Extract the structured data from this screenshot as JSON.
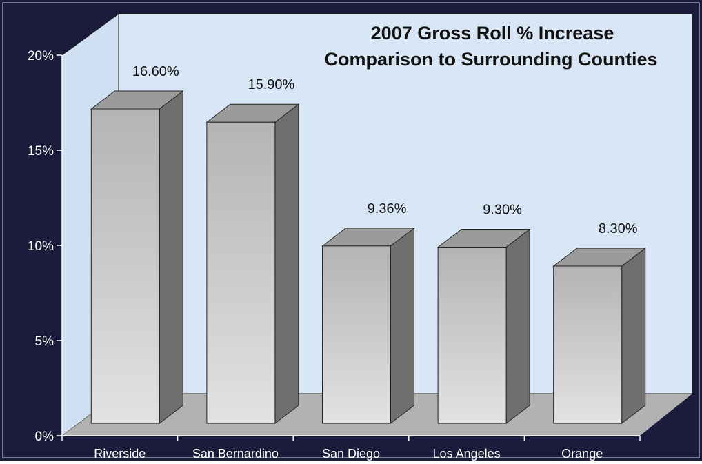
{
  "chart_data": {
    "type": "bar",
    "title_lines": [
      "2007 Gross Roll % Increase",
      "Comparison to Surrounding Counties"
    ],
    "categories": [
      "Riverside",
      "San Bernardino",
      "San Diego",
      "Los Angeles",
      "Orange"
    ],
    "values": [
      16.6,
      15.9,
      9.36,
      9.3,
      8.3
    ],
    "value_labels": [
      "16.60%",
      "15.90%",
      "9.36%",
      "9.30%",
      "8.30%"
    ],
    "y_ticks": [
      0,
      5,
      10,
      15,
      20
    ],
    "y_tick_labels": [
      "0%",
      "5%",
      "10%",
      "15%",
      "20%"
    ],
    "ylim": [
      0,
      20
    ],
    "xlabel": "",
    "ylabel": "",
    "grid": false,
    "legend": "none",
    "style": "3d"
  },
  "colors": {
    "frame_background": "#1b1c3c",
    "back_wall": "#d8e6f5",
    "side_wall": "#cfe0f2",
    "floor": "#b2b2b2",
    "bar_front_top": "#b4b4b4",
    "bar_front_bottom": "#e2e2e2",
    "bar_side": "#6f6f6f",
    "bar_top": "#9b9b9b",
    "text_dark": "#111111",
    "text_light": "#ffffff"
  }
}
